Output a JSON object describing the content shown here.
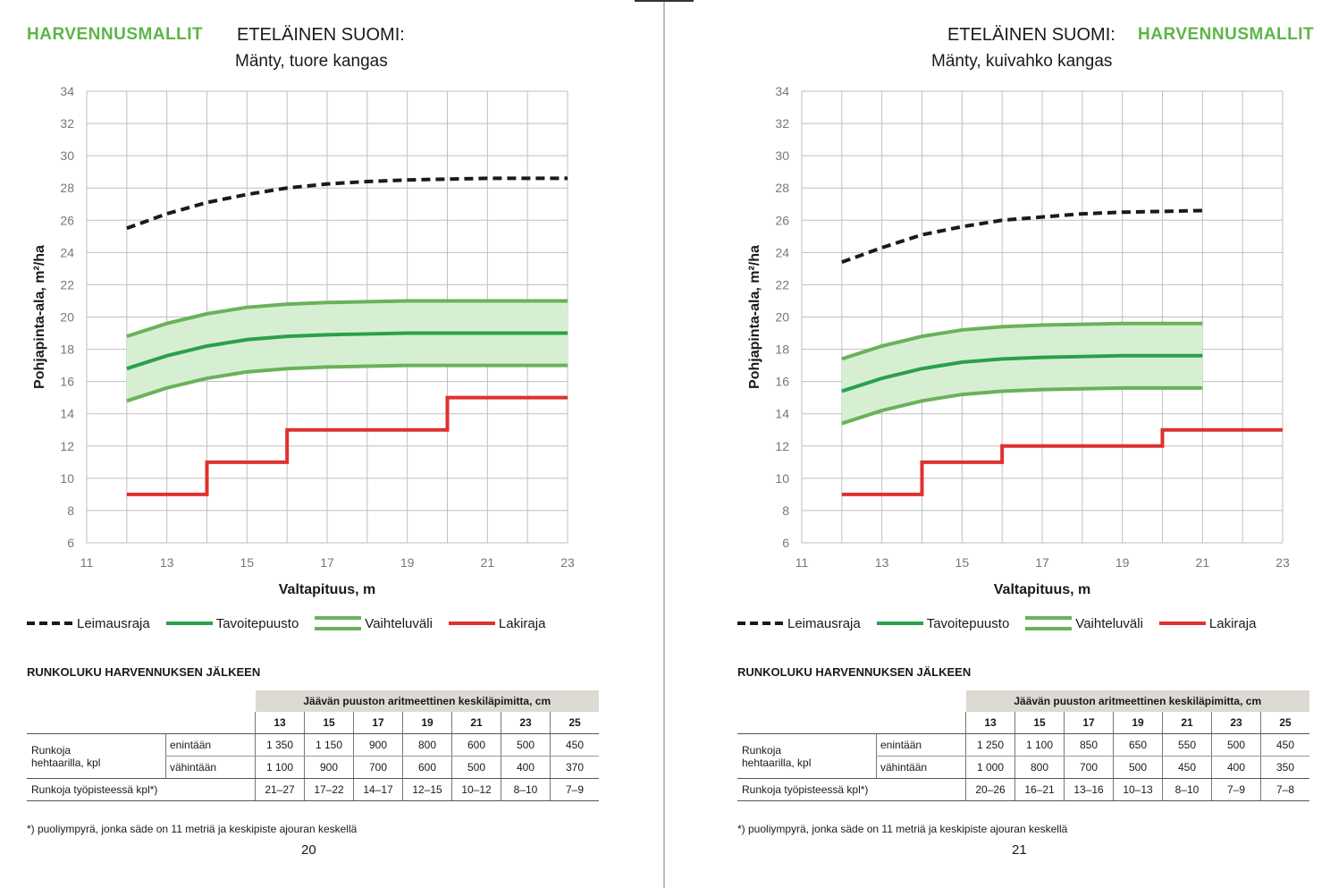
{
  "pages": [
    {
      "brand": "HARVENNUSMALLIT",
      "region": "ETELÄINEN SUOMI:",
      "subtitle": "Mänty, tuore kangas",
      "table_title": "RUNKOLUKU HARVENNUKSEN JÄLKEEN",
      "table": {
        "band_header": "Jäävän puuston aritmeettinen keskiläpimitta, cm",
        "diameters": [
          "13",
          "15",
          "17",
          "19",
          "21",
          "23",
          "25"
        ],
        "group_label": [
          "Runkoja",
          "hehtaarilla, kpl"
        ],
        "rows": [
          {
            "label": "enintään",
            "values": [
              "1 350",
              "1 150",
              "900",
              "800",
              "600",
              "500",
              "450"
            ]
          },
          {
            "label": "vähintään",
            "values": [
              "1 100",
              "900",
              "700",
              "600",
              "500",
              "400",
              "370"
            ]
          }
        ],
        "workspot_label": "Runkoja työpisteessä kpl*)",
        "workspot_values": [
          "21–27",
          "17–22",
          "14–17",
          "12–15",
          "10–12",
          "8–10",
          "7–9"
        ]
      },
      "footnote": "*) puoliympyrä, jonka säde on 11 metriä ja keskipiste ajouran keskellä",
      "page_number": "20"
    },
    {
      "brand": "HARVENNUSMALLIT",
      "region": "ETELÄINEN SUOMI:",
      "subtitle": "Mänty, kuivahko kangas",
      "table_title": "RUNKOLUKU HARVENNUKSEN JÄLKEEN",
      "table": {
        "band_header": "Jäävän puuston aritmeettinen keskiläpimitta, cm",
        "diameters": [
          "13",
          "15",
          "17",
          "19",
          "21",
          "23",
          "25"
        ],
        "group_label": [
          "Runkoja",
          "hehtaarilla, kpl"
        ],
        "rows": [
          {
            "label": "enintään",
            "values": [
              "1 250",
              "1 100",
              "850",
              "650",
              "550",
              "500",
              "450"
            ]
          },
          {
            "label": "vähintään",
            "values": [
              "1 000",
              "800",
              "700",
              "500",
              "450",
              "400",
              "350"
            ]
          }
        ],
        "workspot_label": "Runkoja työpisteessä kpl*)",
        "workspot_values": [
          "20–26",
          "16–21",
          "13–16",
          "10–13",
          "8–10",
          "7–9",
          "7–8"
        ]
      },
      "footnote": "*) puoliympyrä, jonka säde on 11 metriä ja keskipiste ajouran keskellä",
      "page_number": "21"
    }
  ],
  "colors": {
    "leimausraja": "#1a1a1a",
    "tavoitepuusto": "#2aa04a",
    "vaihteluvali": "#6ab25a",
    "vaihteluvali_fill": "#d6efd3",
    "lakiraja": "#e03030",
    "grid": "#bfbfbf",
    "brand": "#5db548"
  },
  "chart_data": [
    {
      "type": "line",
      "xlabel": "Valtapituus, m",
      "ylabel": "Pohjapinta-ala, m²/ha",
      "xlim": [
        11,
        23
      ],
      "ylim": [
        6,
        34
      ],
      "xticks": [
        11,
        13,
        15,
        17,
        19,
        21,
        23
      ],
      "yticks": [
        6,
        8,
        10,
        12,
        14,
        16,
        18,
        20,
        22,
        24,
        26,
        28,
        30,
        32,
        34
      ],
      "grid": true,
      "legend_position": "bottom",
      "series": [
        {
          "name": "Leimausraja",
          "style": "dashed",
          "x": [
            12,
            13,
            14,
            15,
            16,
            17,
            18,
            19,
            20,
            21,
            22,
            23
          ],
          "y": [
            25.5,
            26.4,
            27.1,
            27.6,
            28.0,
            28.25,
            28.4,
            28.5,
            28.55,
            28.6,
            28.6,
            28.6
          ]
        },
        {
          "name": "Tavoitepuusto",
          "style": "solid",
          "x": [
            12,
            13,
            14,
            15,
            16,
            17,
            18,
            19,
            20,
            21,
            22,
            23
          ],
          "y": [
            16.8,
            17.6,
            18.2,
            18.6,
            18.8,
            18.9,
            18.95,
            19.0,
            19.0,
            19.0,
            19.0,
            19.0
          ]
        },
        {
          "name": "Vaihteluväli",
          "style": "band",
          "x": [
            12,
            13,
            14,
            15,
            16,
            17,
            18,
            19,
            20,
            21,
            22,
            23
          ],
          "upper": [
            18.8,
            19.6,
            20.2,
            20.6,
            20.8,
            20.9,
            20.95,
            21.0,
            21.0,
            21.0,
            21.0,
            21.0
          ],
          "lower": [
            14.8,
            15.6,
            16.2,
            16.6,
            16.8,
            16.9,
            16.95,
            17.0,
            17.0,
            17.0,
            17.0,
            17.0
          ]
        },
        {
          "name": "Lakiraja",
          "style": "step",
          "x": [
            12,
            14,
            14,
            16,
            16,
            20,
            20,
            23
          ],
          "y": [
            9,
            9,
            11,
            11,
            13,
            13,
            15,
            15
          ]
        }
      ]
    },
    {
      "type": "line",
      "xlabel": "Valtapituus, m",
      "ylabel": "Pohjapinta-ala, m²/ha",
      "xlim": [
        11,
        23
      ],
      "ylim": [
        6,
        34
      ],
      "xticks": [
        11,
        13,
        15,
        17,
        19,
        21,
        23
      ],
      "yticks": [
        6,
        8,
        10,
        12,
        14,
        16,
        18,
        20,
        22,
        24,
        26,
        28,
        30,
        32,
        34
      ],
      "grid": true,
      "legend_position": "bottom",
      "series": [
        {
          "name": "Leimausraja",
          "style": "dashed",
          "x": [
            12,
            13,
            14,
            15,
            16,
            17,
            18,
            19,
            20,
            21
          ],
          "y": [
            23.4,
            24.3,
            25.1,
            25.6,
            26.0,
            26.2,
            26.4,
            26.5,
            26.55,
            26.6
          ]
        },
        {
          "name": "Tavoitepuusto",
          "style": "solid",
          "x": [
            12,
            13,
            14,
            15,
            16,
            17,
            18,
            19,
            20,
            21
          ],
          "y": [
            15.4,
            16.2,
            16.8,
            17.2,
            17.4,
            17.5,
            17.55,
            17.6,
            17.6,
            17.6
          ]
        },
        {
          "name": "Vaihteluväli",
          "style": "band",
          "x": [
            12,
            13,
            14,
            15,
            16,
            17,
            18,
            19,
            20,
            21
          ],
          "upper": [
            17.4,
            18.2,
            18.8,
            19.2,
            19.4,
            19.5,
            19.55,
            19.6,
            19.6,
            19.6
          ],
          "lower": [
            13.4,
            14.2,
            14.8,
            15.2,
            15.4,
            15.5,
            15.55,
            15.6,
            15.6,
            15.6
          ]
        },
        {
          "name": "Lakiraja",
          "style": "step",
          "x": [
            12,
            14,
            14,
            16,
            16,
            20,
            20,
            23
          ],
          "y": [
            9,
            9,
            11,
            11,
            12,
            12,
            13,
            13
          ]
        }
      ]
    }
  ]
}
